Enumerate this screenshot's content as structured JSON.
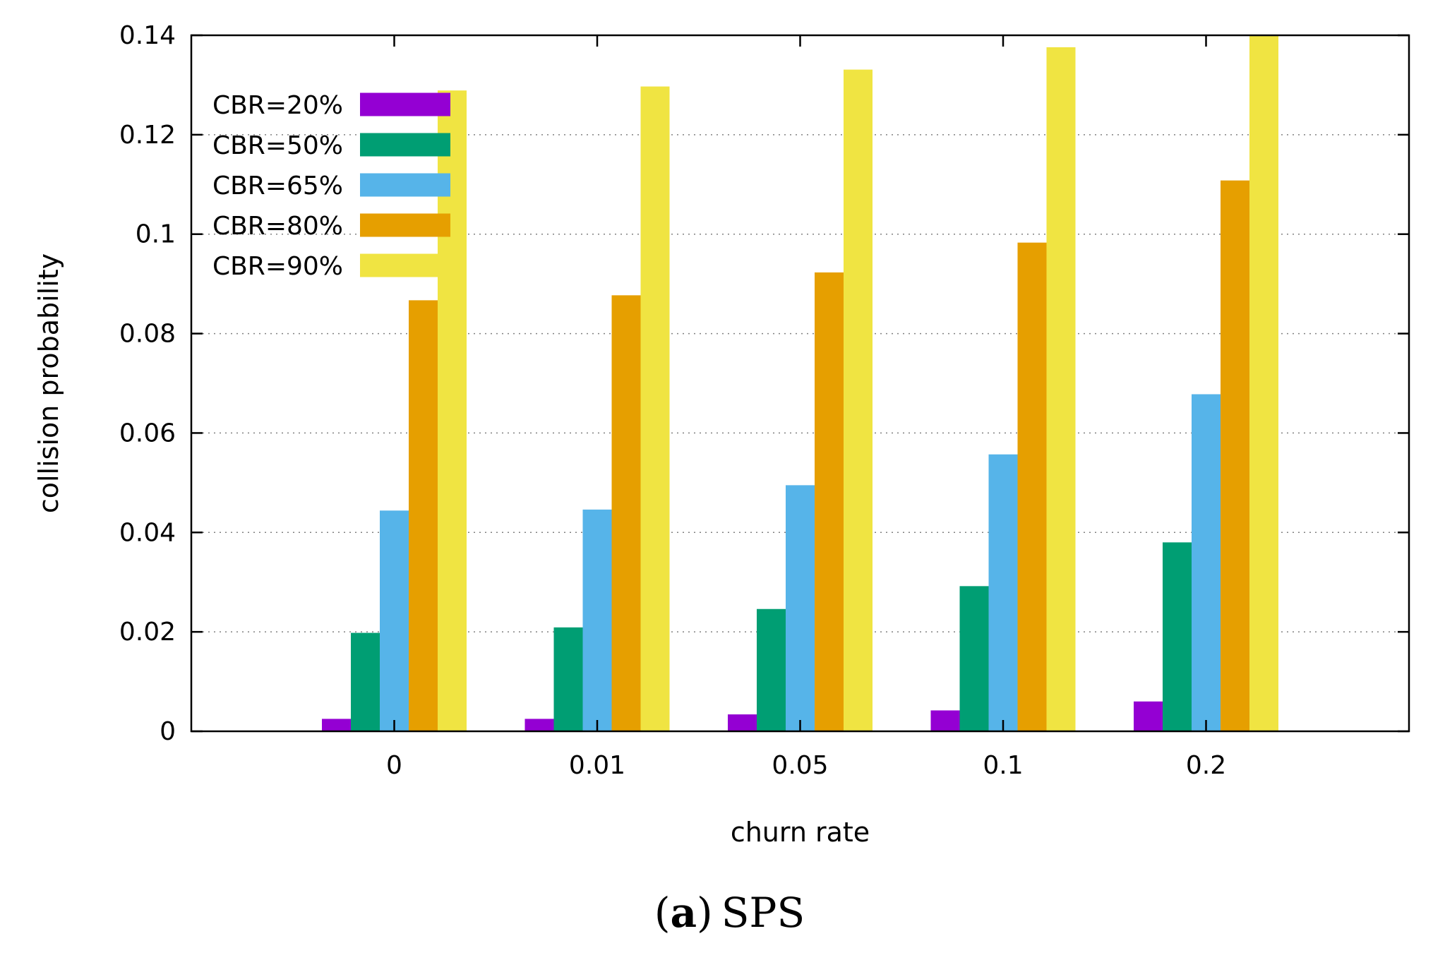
{
  "chart_data": {
    "type": "bar",
    "title": "",
    "xlabel": "churn rate",
    "ylabel": "collision probability",
    "categories": [
      "0",
      "0.01",
      "0.05",
      "0.1",
      "0.2"
    ],
    "ylim": [
      0,
      0.14
    ],
    "yticks": [
      0,
      0.02,
      0.04,
      0.06,
      0.08,
      0.1,
      0.12,
      0.14
    ],
    "ytick_labels": [
      "0",
      "0.02",
      "0.04",
      "0.06",
      "0.08",
      "0.1",
      "0.12",
      "0.14"
    ],
    "grid": "horizontal dotted",
    "legend_position": "top-left",
    "series": [
      {
        "name": "CBR=20%",
        "color": "#9400d3",
        "values": [
          0.0025,
          0.0025,
          0.0034,
          0.0042,
          0.006
        ]
      },
      {
        "name": "CBR=50%",
        "color": "#009e73",
        "values": [
          0.0198,
          0.0209,
          0.0246,
          0.0292,
          0.038
        ]
      },
      {
        "name": "CBR=65%",
        "color": "#56b4e9",
        "values": [
          0.0444,
          0.0446,
          0.0495,
          0.0557,
          0.0678
        ]
      },
      {
        "name": "CBR=80%",
        "color": "#e69f00",
        "values": [
          0.0867,
          0.0877,
          0.0923,
          0.0983,
          0.1108
        ]
      },
      {
        "name": "CBR=90%",
        "color": "#f0e442",
        "values": [
          0.1289,
          0.1297,
          0.1331,
          0.1376,
          0.14
        ]
      }
    ]
  },
  "caption": {
    "label": "(a)",
    "letter": "a",
    "text": "SPS"
  }
}
